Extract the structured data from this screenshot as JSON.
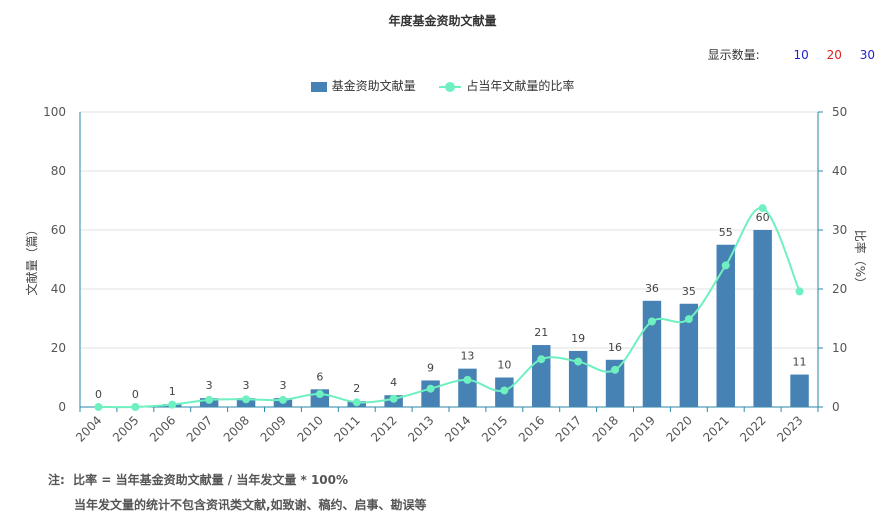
{
  "title": "年度基金资助文献量",
  "display_count": {
    "label": "显示数量:",
    "options": [
      {
        "label": "10",
        "color": "#2222cc"
      },
      {
        "label": "20",
        "color": "#dd2222"
      },
      {
        "label": "30",
        "color": "#2222cc"
      }
    ]
  },
  "notes": {
    "prefix": "注:",
    "line1": "比率 = 当年基金资助文献量 / 当年发文量 * 100%",
    "line2": "当年发文量的统计不包含资讯类文献,如致谢、稿约、启事、勘误等"
  },
  "chart_data": {
    "type": "bar",
    "categories": [
      "2004",
      "2005",
      "2006",
      "2007",
      "2008",
      "2009",
      "2010",
      "2011",
      "2012",
      "2013",
      "2014",
      "2015",
      "2016",
      "2017",
      "2018",
      "2019",
      "2020",
      "2021",
      "2022",
      "2023"
    ],
    "series": [
      {
        "name": "基金资助文献量",
        "type": "bar",
        "axis": "left",
        "color": "#4682b4",
        "values": [
          0,
          0,
          1,
          3,
          3,
          3,
          6,
          2,
          4,
          9,
          13,
          10,
          21,
          19,
          16,
          36,
          35,
          55,
          60,
          11
        ]
      },
      {
        "name": "占当年文献量的比率",
        "type": "line",
        "axis": "right",
        "color": "#6ef0c0",
        "values": [
          0,
          0,
          0.4,
          1.2,
          1.3,
          1.2,
          2.2,
          0.8,
          1.4,
          3.1,
          4.6,
          2.8,
          8.1,
          7.7,
          6.3,
          14.5,
          14.9,
          24.0,
          33.7,
          19.6
        ]
      }
    ],
    "ylabel": "文献量（篇）",
    "y2label": "比率（%）",
    "ylim": [
      0,
      100
    ],
    "y2lim": [
      0,
      50
    ],
    "yticks": [
      0,
      20,
      40,
      60,
      80,
      100
    ],
    "y2ticks": [
      0,
      10,
      20,
      30,
      40,
      50
    ],
    "grid": true,
    "legend": "top-center"
  }
}
